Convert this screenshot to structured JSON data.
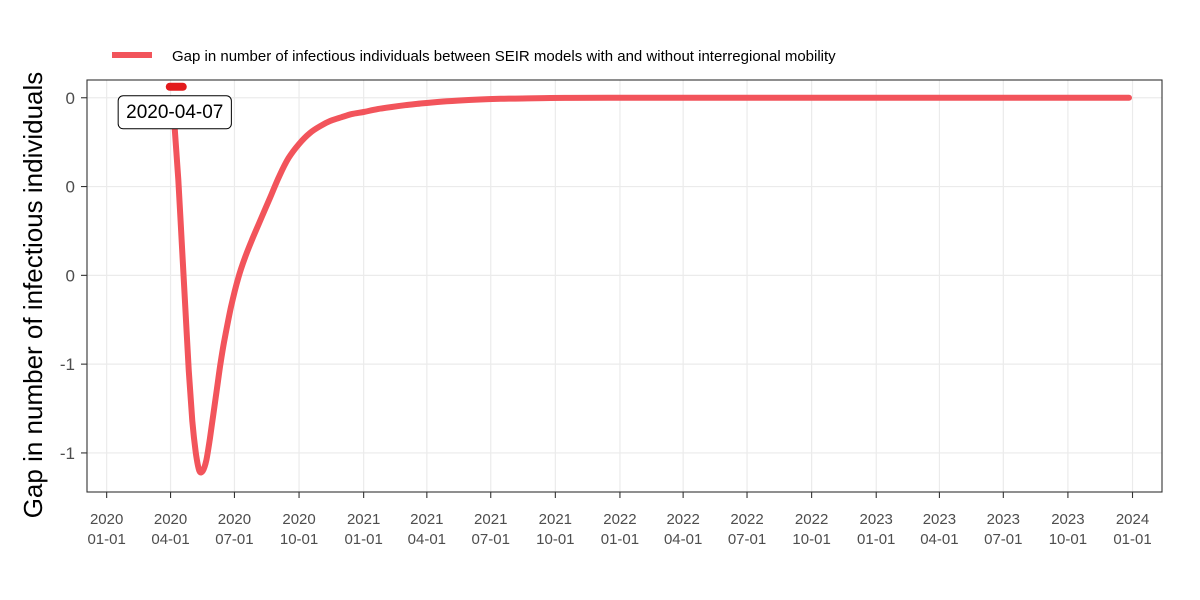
{
  "colors": {
    "series": "#f2545b",
    "marker": "#e31a1c",
    "grid": "#ebebeb",
    "axis": "#333333",
    "background": "#ffffff"
  },
  "chart_data": {
    "type": "line",
    "title": "",
    "xlabel": "",
    "ylabel": "Gap in number of infectious individuals",
    "grid": true,
    "legend_position": "top",
    "x_ticks": [
      {
        "date": "2020-01-01",
        "label": [
          "2020",
          "01-01"
        ]
      },
      {
        "date": "2020-04-01",
        "label": [
          "2020",
          "04-01"
        ]
      },
      {
        "date": "2020-07-01",
        "label": [
          "2020",
          "07-01"
        ]
      },
      {
        "date": "2020-10-01",
        "label": [
          "2020",
          "10-01"
        ]
      },
      {
        "date": "2021-01-01",
        "label": [
          "2021",
          "01-01"
        ]
      },
      {
        "date": "2021-04-01",
        "label": [
          "2021",
          "04-01"
        ]
      },
      {
        "date": "2021-07-01",
        "label": [
          "2021",
          "07-01"
        ]
      },
      {
        "date": "2021-10-01",
        "label": [
          "2021",
          "10-01"
        ]
      },
      {
        "date": "2022-01-01",
        "label": [
          "2022",
          "01-01"
        ]
      },
      {
        "date": "2022-04-01",
        "label": [
          "2022",
          "04-01"
        ]
      },
      {
        "date": "2022-07-01",
        "label": [
          "2022",
          "07-01"
        ]
      },
      {
        "date": "2022-10-01",
        "label": [
          "2022",
          "10-01"
        ]
      },
      {
        "date": "2023-01-01",
        "label": [
          "2023",
          "01-01"
        ]
      },
      {
        "date": "2023-04-01",
        "label": [
          "2023",
          "04-01"
        ]
      },
      {
        "date": "2023-07-01",
        "label": [
          "2023",
          "07-01"
        ]
      },
      {
        "date": "2023-10-01",
        "label": [
          "2023",
          "10-01"
        ]
      },
      {
        "date": "2024-01-01",
        "label": [
          "2024",
          "01-01"
        ]
      }
    ],
    "xlim": [
      "2019-12-04",
      "2024-02-12"
    ],
    "y_ticks": [
      {
        "value": 0.0,
        "label": "0"
      },
      {
        "value": -0.25,
        "label": "0"
      },
      {
        "value": -0.5,
        "label": "0"
      },
      {
        "value": -0.75,
        "label": "-1"
      },
      {
        "value": -1.0,
        "label": "-1"
      }
    ],
    "ylim": [
      -1.11,
      0.05
    ],
    "series": [
      {
        "name": "Gap in number of infectious individuals between SEIR models with and without interregional mobility",
        "x": [
          "2020-04-03",
          "2020-04-07",
          "2020-04-12",
          "2020-04-17",
          "2020-04-22",
          "2020-04-27",
          "2020-05-02",
          "2020-05-07",
          "2020-05-12",
          "2020-05-17",
          "2020-05-22",
          "2020-05-27",
          "2020-06-01",
          "2020-06-06",
          "2020-06-11",
          "2020-06-16",
          "2020-06-26",
          "2020-07-06",
          "2020-07-16",
          "2020-07-26",
          "2020-08-08",
          "2020-08-21",
          "2020-09-03",
          "2020-09-16",
          "2020-10-01",
          "2020-10-16",
          "2020-10-31",
          "2020-11-15",
          "2020-11-30",
          "2020-12-15",
          "2021-01-01",
          "2021-01-21",
          "2021-02-10",
          "2021-03-01",
          "2021-03-25",
          "2021-04-16",
          "2021-05-15",
          "2021-06-15",
          "2021-07-15",
          "2021-08-15",
          "2021-09-15",
          "2021-10-15",
          "2021-12-15",
          "2022-06-01",
          "2023-01-01",
          "2023-06-01",
          "2023-12-27"
        ],
        "y": [
          -0.02,
          -0.09,
          -0.23,
          -0.41,
          -0.59,
          -0.77,
          -0.91,
          -1.0,
          -1.05,
          -1.05,
          -1.02,
          -0.96,
          -0.89,
          -0.82,
          -0.75,
          -0.69,
          -0.59,
          -0.51,
          -0.45,
          -0.4,
          -0.34,
          -0.28,
          -0.22,
          -0.17,
          -0.13,
          -0.1,
          -0.08,
          -0.065,
          -0.055,
          -0.046,
          -0.04,
          -0.032,
          -0.026,
          -0.021,
          -0.016,
          -0.012,
          -0.008,
          -0.005,
          -0.003,
          -0.002,
          -0.001,
          -0.0005,
          -0.0002,
          -0.0001,
          0.0,
          0.0,
          0.0
        ]
      }
    ],
    "annotation": {
      "date": "2020-04-07",
      "y": 0.0,
      "text": "2020-04-07"
    }
  }
}
